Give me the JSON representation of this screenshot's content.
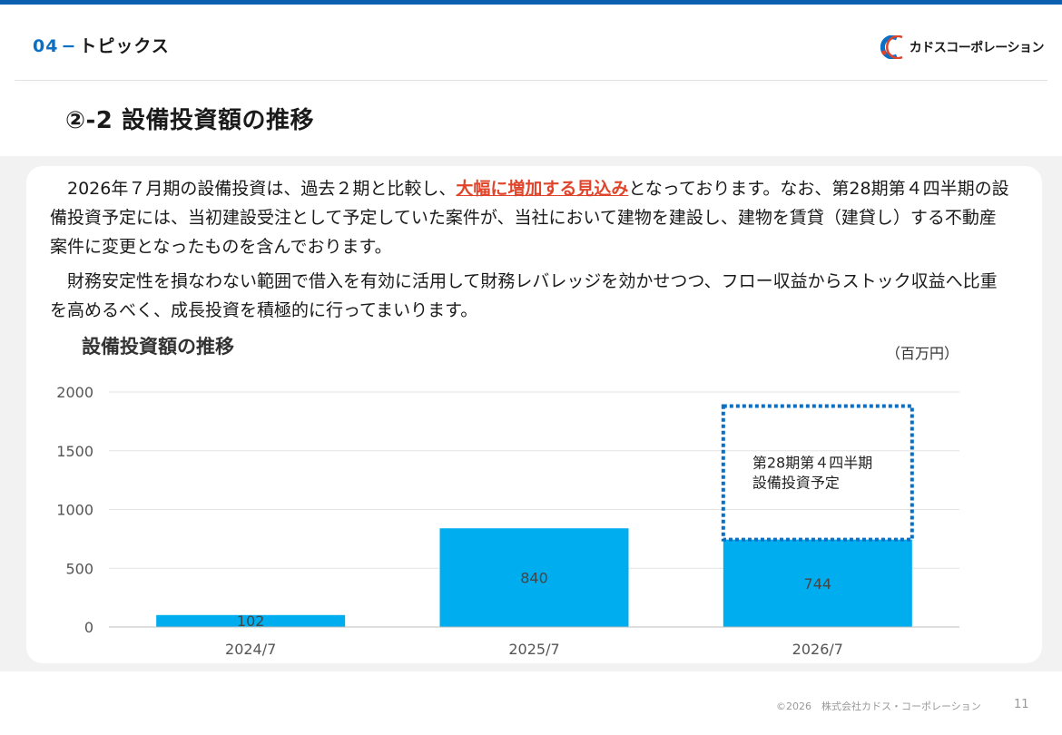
{
  "header": {
    "section_number": "04",
    "section_dash": "−",
    "section_title": "トピックス",
    "logo_text": "カドスコーポレーション"
  },
  "page_title": "②-2 設備投資額の推移",
  "body": {
    "p1_before": "　2026年７月期の設備投資は、過去２期と比較し、",
    "p1_highlight": "大幅に増加する見込み",
    "p1_after": "となっております。なお、第28期第４四半期の設備投資予定には、当初建設受注として予定していた案件が、当社において建物を建設し、建物を賃貸（建貸し）する不動産案件に変更となったものを含んでおります。",
    "p2": "　財務安定性を損なわない範囲で借入を有効に活用して財務レバレッジを効かせつつ、フロー収益からストック収益へ比重を高めるべく、成長投資を積極的に行ってまいります。"
  },
  "chart_data": {
    "type": "bar",
    "title": "設備投資額の推移",
    "unit": "（百万円）",
    "categories": [
      "2024/7",
      "2025/7",
      "2026/7"
    ],
    "values": [
      102,
      840,
      744
    ],
    "ylim": [
      0,
      2000
    ],
    "yticks": [
      0,
      500,
      1000,
      1500,
      2000
    ],
    "grid": true,
    "bar_color": "#00aeef",
    "planned": {
      "category": "2026/7",
      "top_value": 1880,
      "label_line1": "第28期第４四半期",
      "label_line2": "設備投資予定",
      "border_color": "#0b6fc4"
    }
  },
  "footer": {
    "copyright": "©2026　株式会社カドス・コーポレーション",
    "page": "11"
  }
}
